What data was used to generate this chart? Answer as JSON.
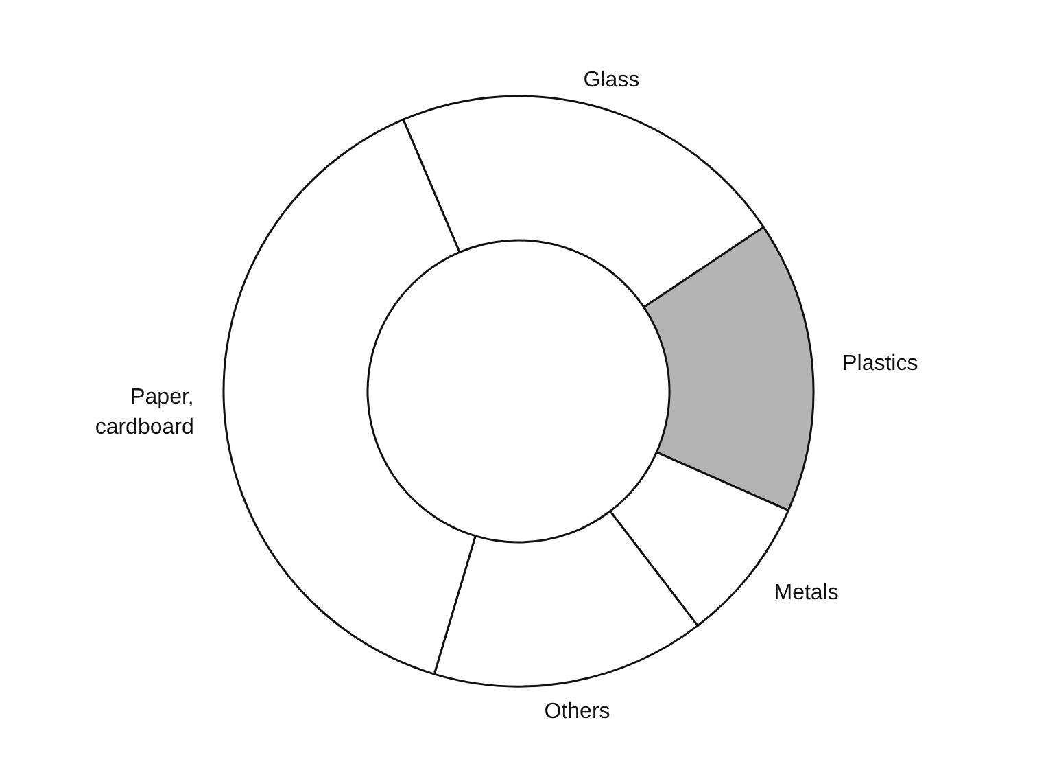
{
  "chart_data": {
    "type": "donut",
    "categories": [
      "Glass",
      "Plastics",
      "Metals",
      "Others",
      "Paper, cardboard"
    ],
    "values": [
      22,
      16,
      8,
      15,
      39
    ],
    "colors": [
      "#ffffff",
      "#b4b4b4",
      "#ffffff",
      "#ffffff",
      "#ffffff"
    ],
    "legend": false
  }
}
